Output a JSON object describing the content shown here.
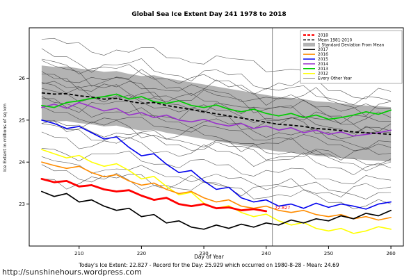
{
  "footer": {
    "stats": "Today's Ice Extent: 22.827  -  Record for the Day: 25.929 which occurred on 1980-8-28  -  Mean: 24.69",
    "watermark": "http://sunshinehours.wordpress.com"
  },
  "chart_data": {
    "type": "line",
    "title": "Global Sea Ice Extent Day 241 1978 to 2018",
    "xlabel": "Day of Year",
    "ylabel": "Ice Extent in millions of sq km",
    "xlim": [
      202,
      262
    ],
    "ylim": [
      22.0,
      27.2
    ],
    "xticks": [
      210,
      220,
      230,
      240,
      250,
      260
    ],
    "yticks": [
      23,
      24,
      25,
      26
    ],
    "grid": false,
    "legend_position": "top-right",
    "x": [
      204,
      206,
      208,
      210,
      212,
      214,
      216,
      218,
      220,
      222,
      224,
      226,
      228,
      230,
      232,
      234,
      236,
      238,
      240,
      242,
      244,
      246,
      248,
      250,
      252,
      254,
      256,
      258,
      260
    ],
    "mean": {
      "name": "Mean 1981-2010",
      "color": "#000000",
      "dash": "5,3",
      "width": 1.8,
      "values": [
        25.65,
        25.62,
        25.63,
        25.58,
        25.55,
        25.5,
        25.52,
        25.45,
        25.4,
        25.42,
        25.35,
        25.3,
        25.25,
        25.2,
        25.15,
        25.1,
        25.05,
        25.0,
        24.95,
        24.9,
        24.88,
        24.85,
        24.8,
        24.78,
        24.75,
        24.72,
        24.7,
        24.68,
        24.66
      ]
    },
    "band": {
      "name": "1 Standard Deviation From Mean",
      "color": "#b3b3b3",
      "offset": 0.65
    },
    "series": [
      {
        "name": "2012",
        "color": "#ffff00",
        "width": 1.6,
        "values": [
          24.3,
          24.2,
          24.1,
          24.16,
          24.0,
          23.9,
          23.96,
          23.8,
          23.6,
          23.66,
          23.42,
          23.22,
          23.28,
          23.02,
          22.9,
          22.96,
          22.8,
          22.7,
          22.76,
          22.6,
          22.5,
          22.56,
          22.42,
          22.36,
          22.42,
          22.3,
          22.36,
          22.46,
          22.4
        ]
      },
      {
        "name": "2016",
        "color": "#ff8c00",
        "width": 1.6,
        "values": [
          24.0,
          23.92,
          23.85,
          23.9,
          23.75,
          23.65,
          23.7,
          23.55,
          23.45,
          23.5,
          23.35,
          23.25,
          23.3,
          23.15,
          23.05,
          23.1,
          22.95,
          22.9,
          22.95,
          22.85,
          22.8,
          22.85,
          22.75,
          22.7,
          22.75,
          22.65,
          22.7,
          22.62,
          22.68
        ]
      },
      {
        "name": "2017",
        "color": "#000000",
        "width": 1.7,
        "values": [
          23.3,
          23.18,
          23.25,
          23.05,
          23.1,
          22.95,
          22.85,
          22.9,
          22.7,
          22.75,
          22.55,
          22.6,
          22.45,
          22.4,
          22.5,
          22.42,
          22.52,
          22.45,
          22.55,
          22.5,
          22.62,
          22.55,
          22.65,
          22.6,
          22.72,
          22.65,
          22.78,
          22.72,
          22.85
        ]
      },
      {
        "name": "2015",
        "color": "#0000ee",
        "width": 1.6,
        "values": [
          25.0,
          24.92,
          24.8,
          24.85,
          24.7,
          24.55,
          24.6,
          24.35,
          24.15,
          24.2,
          23.95,
          23.75,
          23.8,
          23.55,
          23.35,
          23.4,
          23.15,
          23.05,
          23.1,
          22.95,
          23.0,
          22.9,
          23.02,
          22.92,
          23.0,
          22.95,
          22.88,
          23.0,
          23.05
        ]
      },
      {
        "name": "2014",
        "color": "#9932cc",
        "width": 1.6,
        "values": [
          25.3,
          25.38,
          25.28,
          25.42,
          25.32,
          25.22,
          25.28,
          25.12,
          25.18,
          25.06,
          25.12,
          25.0,
          24.96,
          25.02,
          24.92,
          24.86,
          24.92,
          24.8,
          24.86,
          24.76,
          24.82,
          24.7,
          24.76,
          24.66,
          24.72,
          24.62,
          24.66,
          24.7,
          24.76
        ]
      },
      {
        "name": "2013",
        "color": "#00cc00",
        "width": 1.7,
        "values": [
          25.35,
          25.3,
          25.42,
          25.46,
          25.52,
          25.56,
          25.62,
          25.5,
          25.56,
          25.44,
          25.4,
          25.46,
          25.35,
          25.3,
          25.36,
          25.26,
          25.2,
          25.26,
          25.16,
          25.1,
          25.16,
          25.06,
          25.12,
          25.02,
          25.06,
          25.12,
          25.2,
          25.14,
          25.24
        ]
      },
      {
        "name": "2018",
        "color": "#ff0000",
        "width": 2.8,
        "values": [
          23.6,
          23.52,
          23.55,
          23.42,
          23.45,
          23.35,
          23.3,
          23.33,
          23.2,
          23.1,
          23.15,
          23.0,
          22.95,
          23.0,
          22.9,
          22.92,
          22.85,
          22.88,
          22.83,
          null,
          null,
          null,
          null,
          null,
          null,
          null,
          null,
          null,
          null
        ]
      }
    ],
    "other_years": {
      "name": "Every Other Year",
      "color": "#3a3a3a",
      "width": 0.6,
      "specs": [
        [
          26.85,
          26.0,
          0.12,
          0.3
        ],
        [
          26.5,
          25.6,
          0.15,
          1.1
        ],
        [
          26.4,
          25.4,
          0.12,
          2.0
        ],
        [
          26.2,
          25.3,
          0.18,
          0.7
        ],
        [
          26.1,
          25.2,
          0.1,
          2.6
        ],
        [
          26.0,
          25.0,
          0.15,
          1.5
        ],
        [
          25.9,
          24.9,
          0.12,
          3.1
        ],
        [
          25.8,
          24.8,
          0.14,
          0.2
        ],
        [
          25.7,
          24.7,
          0.1,
          1.9
        ],
        [
          25.5,
          24.6,
          0.16,
          2.4
        ],
        [
          25.4,
          24.4,
          0.12,
          0.9
        ],
        [
          25.2,
          24.3,
          0.1,
          1.3
        ],
        [
          25.0,
          24.1,
          0.15,
          2.8
        ],
        [
          24.9,
          24.0,
          0.1,
          0.1
        ],
        [
          24.8,
          23.9,
          0.12,
          0.5
        ],
        [
          24.6,
          23.8,
          0.14,
          1.7
        ],
        [
          24.3,
          23.5,
          0.12,
          2.2
        ],
        [
          24.0,
          23.2,
          0.1,
          0.8
        ],
        [
          23.8,
          22.95,
          0.12,
          1.4
        ],
        [
          23.6,
          23.3,
          0.15,
          2.9
        ]
      ]
    },
    "vline": {
      "day": 241,
      "label": "22.827",
      "label_color": "#ff0000",
      "line_color": "#707070"
    },
    "legend": [
      {
        "label": "2018",
        "color": "#ff0000",
        "style": "thick"
      },
      {
        "label": "Mean 1981-2010",
        "color": "#000000",
        "style": "dash"
      },
      {
        "label": "1 Standard Deviation From Mean",
        "color": "#b3b3b3",
        "style": "band"
      },
      {
        "label": "2017",
        "color": "#000000",
        "style": "line"
      },
      {
        "label": "2016",
        "color": "#ff8c00",
        "style": "line"
      },
      {
        "label": "2015",
        "color": "#0000ee",
        "style": "line"
      },
      {
        "label": "2014",
        "color": "#9932cc",
        "style": "line"
      },
      {
        "label": "2013",
        "color": "#00cc00",
        "style": "line"
      },
      {
        "label": "2012",
        "color": "#ffff00",
        "style": "line"
      },
      {
        "label": "Every Other Year",
        "color": "#555555",
        "style": "thin"
      }
    ]
  }
}
